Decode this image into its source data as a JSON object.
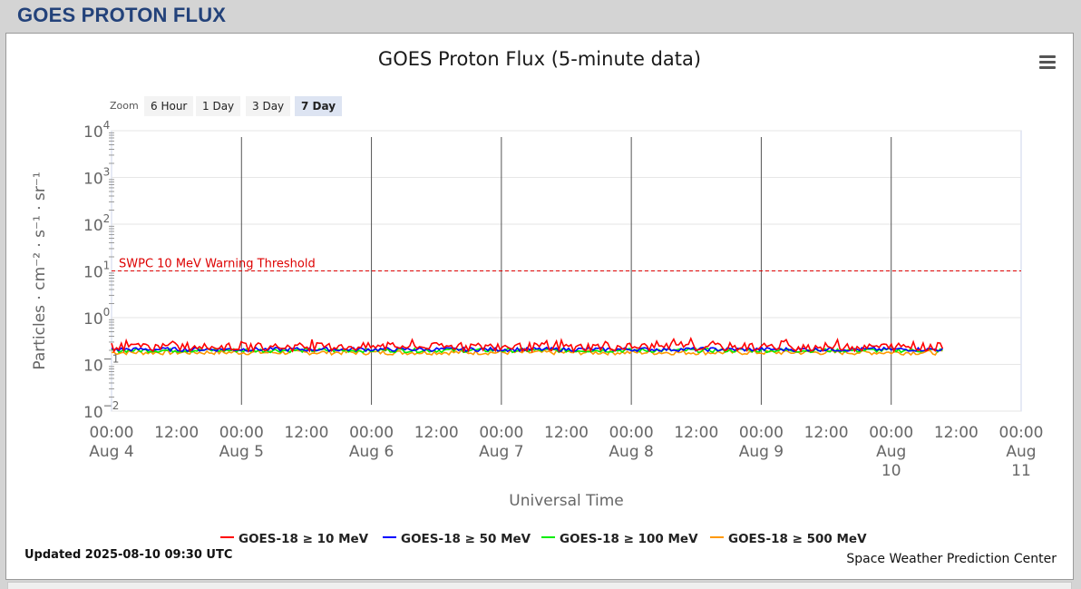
{
  "header": {
    "title": "GOES PROTON FLUX"
  },
  "chart": {
    "title": "GOES Proton Flux (5-minute data)",
    "zoom_label": "Zoom",
    "zoom_buttons": [
      {
        "label": "6 Hour",
        "active": false
      },
      {
        "label": "1 Day",
        "active": false
      },
      {
        "label": "3 Day",
        "active": false
      },
      {
        "label": "7 Day",
        "active": true
      }
    ],
    "threshold_label": "SWPC 10 MeV Warning Threshold",
    "updated": "Updated 2025-08-10 09:30 UTC",
    "credit": "Space Weather Prediction Center",
    "menu_icon": "hamburger-menu-icon"
  },
  "chart_data": {
    "type": "line",
    "title": "GOES Proton Flux (5-minute data)",
    "xlabel": "Universal Time",
    "ylabel": "Particles · cm⁻² · s⁻¹ · sr⁻¹",
    "y_scale": "log",
    "ylim": [
      0.01,
      10000
    ],
    "y_ticks": [
      {
        "base": "10",
        "exp": "4"
      },
      {
        "base": "10",
        "exp": "3"
      },
      {
        "base": "10",
        "exp": "2"
      },
      {
        "base": "10",
        "exp": "1"
      },
      {
        "base": "10",
        "exp": "0"
      },
      {
        "base": "10",
        "exp": "−1"
      },
      {
        "base": "10",
        "exp": "−2"
      }
    ],
    "xlim": [
      "2025-08-04 00:00",
      "2025-08-11 00:00"
    ],
    "x_ticks": [
      {
        "time": "00:00",
        "date": "Aug 4"
      },
      {
        "time": "12:00",
        "date": ""
      },
      {
        "time": "00:00",
        "date": "Aug 5"
      },
      {
        "time": "12:00",
        "date": ""
      },
      {
        "time": "00:00",
        "date": "Aug 6"
      },
      {
        "time": "12:00",
        "date": ""
      },
      {
        "time": "00:00",
        "date": "Aug 7"
      },
      {
        "time": "12:00",
        "date": ""
      },
      {
        "time": "00:00",
        "date": "Aug 8"
      },
      {
        "time": "12:00",
        "date": ""
      },
      {
        "time": "00:00",
        "date": "Aug 9"
      },
      {
        "time": "12:00",
        "date": ""
      },
      {
        "time": "00:00",
        "date": "Aug 10"
      },
      {
        "time": "12:00",
        "date": ""
      },
      {
        "time": "00:00",
        "date": "Aug 11"
      }
    ],
    "threshold": {
      "label": "SWPC 10 MeV Warning Threshold",
      "value": 10,
      "color": "#dd0000"
    },
    "data_end": "2025-08-10 09:30",
    "legend_position": "bottom-center",
    "grid": true,
    "series": [
      {
        "name": "GOES-18 ≥ 10 MeV",
        "color": "#ff0000",
        "baseline": 0.24,
        "spread": 0.05
      },
      {
        "name": "GOES-18 ≥ 50 MeV",
        "color": "#0000ff",
        "baseline": 0.21,
        "spread": 0.02
      },
      {
        "name": "GOES-18 ≥ 100 MeV",
        "color": "#00ee00",
        "baseline": 0.2,
        "spread": 0.02
      },
      {
        "name": "GOES-18 ≥ 500 MeV",
        "color": "#ff9900",
        "baseline": 0.18,
        "spread": 0.02
      }
    ]
  }
}
